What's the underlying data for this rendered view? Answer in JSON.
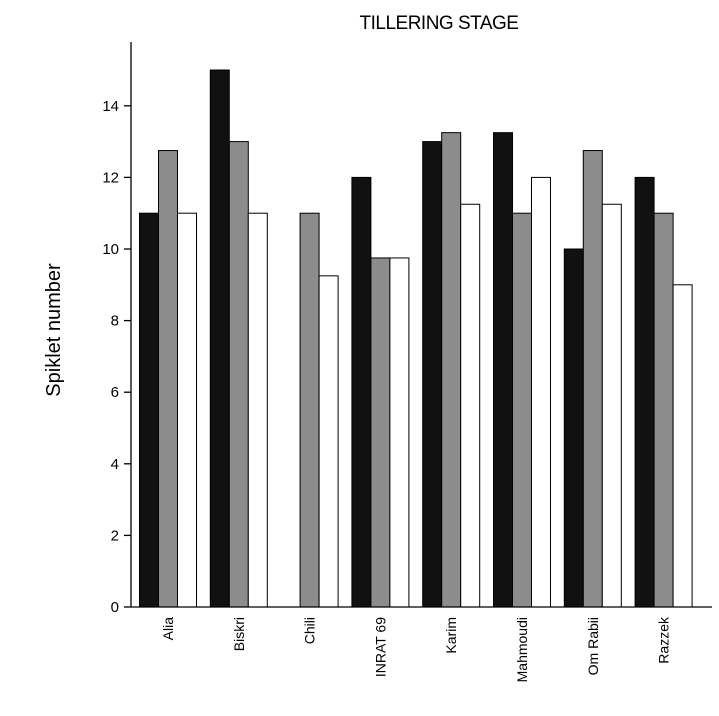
{
  "chart_data": {
    "type": "bar",
    "title": "TILLERING STAGE",
    "xlabel": "",
    "ylabel": "Spiklet number",
    "ylim": [
      0,
      16
    ],
    "yticks": [
      0,
      2,
      4,
      6,
      8,
      10,
      12,
      14
    ],
    "grid": false,
    "legend": "none",
    "categories": [
      "Alia",
      "Biskri",
      "Chili",
      "INRAT 69",
      "Karim",
      "Mahmoudi",
      "Om Rabii",
      "Razzek"
    ],
    "series": [
      {
        "color": "#111111",
        "values": [
          11,
          15,
          0,
          12,
          13,
          13.25,
          10,
          12
        ]
      },
      {
        "color": "#8c8c8c",
        "values": [
          12.75,
          13,
          11,
          9.75,
          13.25,
          11,
          12.75,
          11
        ]
      },
      {
        "color": "#ffffff",
        "values": [
          11,
          11,
          9.25,
          9.75,
          11.25,
          12,
          11.25,
          9
        ]
      }
    ]
  }
}
